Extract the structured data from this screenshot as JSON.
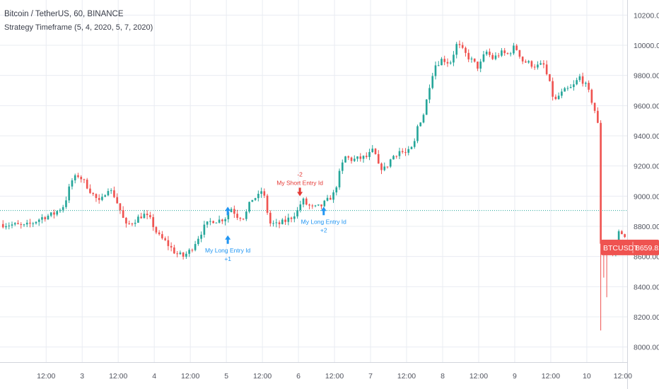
{
  "header": {
    "symbol_line": "Bitcoin / TetherUS, 60, BINANCE",
    "strategy_line": "Strategy Timeframe (5, 4, 2020, 5, 7, 2020)"
  },
  "colors": {
    "up": "#26a69a",
    "down": "#ef5350",
    "grid": "#e9ecf2",
    "price_line": "#26a69a",
    "long_marker": "#2196f3",
    "short_marker": "#e53935",
    "last_price_bg": "#ef5350",
    "axis_text": "#50535e"
  },
  "chart_data": {
    "type": "candlestick",
    "symbol": "BTCUSDT",
    "exchange": "BINANCE",
    "interval": "60",
    "last_price": 8659.82,
    "last_price_label": "8659.82",
    "ticker_label": "BTCUSDT",
    "reference_level": 8905,
    "ylim": [
      7900,
      10300
    ],
    "y_ticks": [
      8000,
      8200,
      8400,
      8600,
      8800,
      9000,
      9200,
      9400,
      9600,
      9800,
      10000,
      10200
    ],
    "y_tick_labels": [
      "8000.00",
      "8200.00",
      "8400.00",
      "8600.00",
      "8800.00",
      "9000.00",
      "9200.00",
      "9400.00",
      "9600.00",
      "9800.00",
      "10000.00",
      "10200.00"
    ],
    "x_range": [
      1.86,
      10.56
    ],
    "x_ticks": [
      2.5,
      3,
      3.5,
      4,
      4.5,
      5,
      5.5,
      6,
      6.5,
      7,
      7.5,
      8,
      8.5,
      9,
      9.5,
      10,
      10.5
    ],
    "x_tick_labels": [
      "12:00",
      "3",
      "12:00",
      "4",
      "12:00",
      "5",
      "12:00",
      "6",
      "12:00",
      "7",
      "12:00",
      "8",
      "12:00",
      "9",
      "12:00",
      "10",
      "12:00"
    ],
    "price_path": [
      [
        1.86,
        8815
      ],
      [
        2.05,
        8810
      ],
      [
        2.2,
        8800
      ],
      [
        2.3,
        8820
      ],
      [
        2.45,
        8860
      ],
      [
        2.6,
        8880
      ],
      [
        2.75,
        8940
      ],
      [
        2.85,
        9100
      ],
      [
        2.95,
        9140
      ],
      [
        3.05,
        9080
      ],
      [
        3.15,
        9010
      ],
      [
        3.25,
        8950
      ],
      [
        3.35,
        9060
      ],
      [
        3.45,
        9000
      ],
      [
        3.55,
        8880
      ],
      [
        3.6,
        8800
      ],
      [
        3.7,
        8830
      ],
      [
        3.85,
        8880
      ],
      [
        3.95,
        8840
      ],
      [
        4.05,
        8740
      ],
      [
        4.15,
        8700
      ],
      [
        4.3,
        8620
      ],
      [
        4.4,
        8600
      ],
      [
        4.5,
        8640
      ],
      [
        4.6,
        8720
      ],
      [
        4.7,
        8800
      ],
      [
        4.8,
        8840
      ],
      [
        4.9,
        8840
      ],
      [
        5.0,
        8860
      ],
      [
        5.05,
        8930
      ],
      [
        5.15,
        8870
      ],
      [
        5.25,
        8860
      ],
      [
        5.35,
        8980
      ],
      [
        5.45,
        9000
      ],
      [
        5.5,
        9050
      ],
      [
        5.55,
        8940
      ],
      [
        5.6,
        8820
      ],
      [
        5.7,
        8810
      ],
      [
        5.8,
        8830
      ],
      [
        5.9,
        8860
      ],
      [
        6.0,
        8910
      ],
      [
        6.05,
        8980
      ],
      [
        6.1,
        8950
      ],
      [
        6.2,
        8920
      ],
      [
        6.3,
        8930
      ],
      [
        6.4,
        8970
      ],
      [
        6.5,
        9020
      ],
      [
        6.55,
        9120
      ],
      [
        6.6,
        9200
      ],
      [
        6.65,
        9260
      ],
      [
        6.75,
        9240
      ],
      [
        6.85,
        9250
      ],
      [
        6.95,
        9260
      ],
      [
        7.05,
        9310
      ],
      [
        7.1,
        9200
      ],
      [
        7.2,
        9180
      ],
      [
        7.3,
        9260
      ],
      [
        7.4,
        9300
      ],
      [
        7.5,
        9280
      ],
      [
        7.6,
        9330
      ],
      [
        7.65,
        9460
      ],
      [
        7.75,
        9560
      ],
      [
        7.8,
        9700
      ],
      [
        7.85,
        9800
      ],
      [
        7.9,
        9870
      ],
      [
        8.0,
        9910
      ],
      [
        8.1,
        9880
      ],
      [
        8.2,
        10010
      ],
      [
        8.3,
        9950
      ],
      [
        8.4,
        9900
      ],
      [
        8.5,
        9850
      ],
      [
        8.6,
        9960
      ],
      [
        8.7,
        9910
      ],
      [
        8.8,
        9950
      ],
      [
        8.9,
        9940
      ],
      [
        9.0,
        9990
      ],
      [
        9.05,
        9960
      ],
      [
        9.1,
        9900
      ],
      [
        9.2,
        9880
      ],
      [
        9.3,
        9860
      ],
      [
        9.4,
        9870
      ],
      [
        9.5,
        9720
      ],
      [
        9.55,
        9620
      ],
      [
        9.6,
        9660
      ],
      [
        9.7,
        9700
      ],
      [
        9.8,
        9720
      ],
      [
        9.9,
        9790
      ],
      [
        9.95,
        9760
      ],
      [
        10.0,
        9720
      ],
      [
        10.05,
        9660
      ],
      [
        10.1,
        9580
      ],
      [
        10.15,
        9520
      ],
      [
        10.18,
        8700
      ],
      [
        10.25,
        8660
      ],
      [
        10.3,
        8650
      ],
      [
        10.35,
        8620
      ],
      [
        10.4,
        8640
      ],
      [
        10.45,
        8780
      ],
      [
        10.5,
        8760
      ],
      [
        10.56,
        8660
      ]
    ],
    "wick_events": [
      {
        "x": 10.2,
        "low": 8110
      },
      {
        "x": 10.28,
        "low": 8330
      },
      {
        "x": 10.23,
        "low": 8460
      }
    ],
    "annotations": [
      {
        "kind": "long",
        "x": 5.02,
        "y": 8930,
        "lines": []
      },
      {
        "kind": "long",
        "x": 5.02,
        "y": 8740,
        "lines": [
          "My Long Entry Id",
          "+1"
        ]
      },
      {
        "kind": "short",
        "x": 6.02,
        "y": 9000,
        "lines": [
          "-2",
          "My Short Entry Id"
        ]
      },
      {
        "kind": "long",
        "x": 6.35,
        "y": 8930,
        "lines": [
          "My Long Entry Id",
          "+2"
        ]
      }
    ]
  }
}
